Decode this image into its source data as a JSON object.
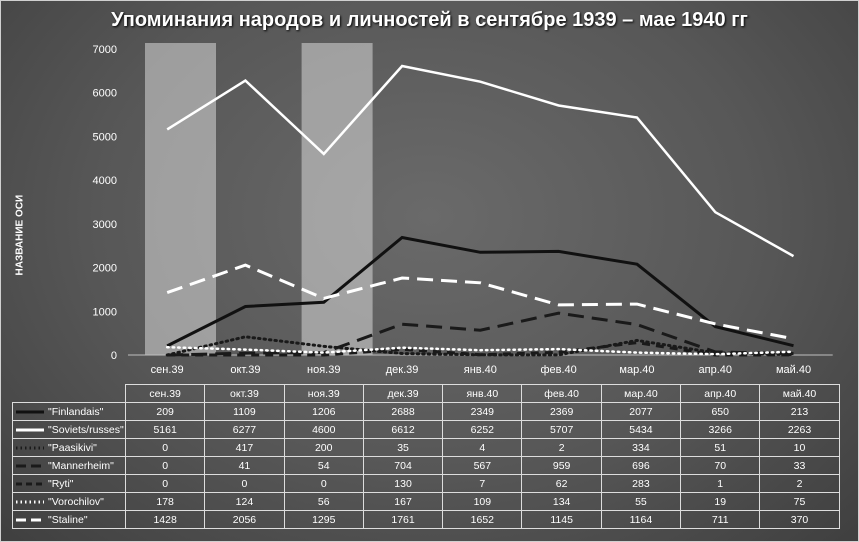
{
  "chart_data": {
    "type": "line",
    "title": "Упоминания народов и личностей в сентябре 1939 – мае 1940 гг",
    "ylabel": "НАЗВАНИЕ ОСИ",
    "xlabel": "",
    "ylim": [
      0,
      7000
    ],
    "yticks": [
      0,
      1000,
      2000,
      3000,
      4000,
      5000,
      6000,
      7000
    ],
    "grid": false,
    "legend": "data-table",
    "categories": [
      "сен.39",
      "окт.39",
      "ноя.39",
      "дек.39",
      "янв.40",
      "фев.40",
      "мар.40",
      "апр.40",
      "май.40"
    ],
    "highlight_bands": [
      "сен.39",
      "ноя.39"
    ],
    "series": [
      {
        "name": "\"Finlandais\"",
        "values": [
          209,
          1109,
          1206,
          2688,
          2349,
          2369,
          2077,
          650,
          213
        ],
        "color": "#111111",
        "dash": "solid",
        "width": 3
      },
      {
        "name": "\"Soviets/russes\"",
        "values": [
          5161,
          6277,
          4600,
          6612,
          6252,
          5707,
          5434,
          3266,
          2263
        ],
        "color": "#ffffff",
        "dash": "solid",
        "width": 2.5
      },
      {
        "name": "\"Paasikivi\"",
        "values": [
          0,
          417,
          200,
          35,
          4,
          2,
          334,
          51,
          10
        ],
        "color": "#1a1a1a",
        "dash": "dot",
        "width": 3
      },
      {
        "name": "\"Mannerheim\"",
        "values": [
          0,
          41,
          54,
          704,
          567,
          959,
          696,
          70,
          33
        ],
        "color": "#1a1a1a",
        "dash": "longdash",
        "width": 3
      },
      {
        "name": "\"Ryti\"",
        "values": [
          0,
          0,
          0,
          130,
          7,
          62,
          283,
          1,
          2
        ],
        "color": "#1a1a1a",
        "dash": "dash",
        "width": 3
      },
      {
        "name": "\"Vorochilov\"",
        "values": [
          178,
          124,
          56,
          167,
          109,
          134,
          55,
          19,
          75
        ],
        "color": "#ffffff",
        "dash": "dot",
        "width": 2.5
      },
      {
        "name": "\"Staline\"",
        "values": [
          1428,
          2056,
          1295,
          1761,
          1652,
          1145,
          1164,
          711,
          370
        ],
        "color": "#ffffff",
        "dash": "longdash",
        "width": 3
      }
    ]
  }
}
